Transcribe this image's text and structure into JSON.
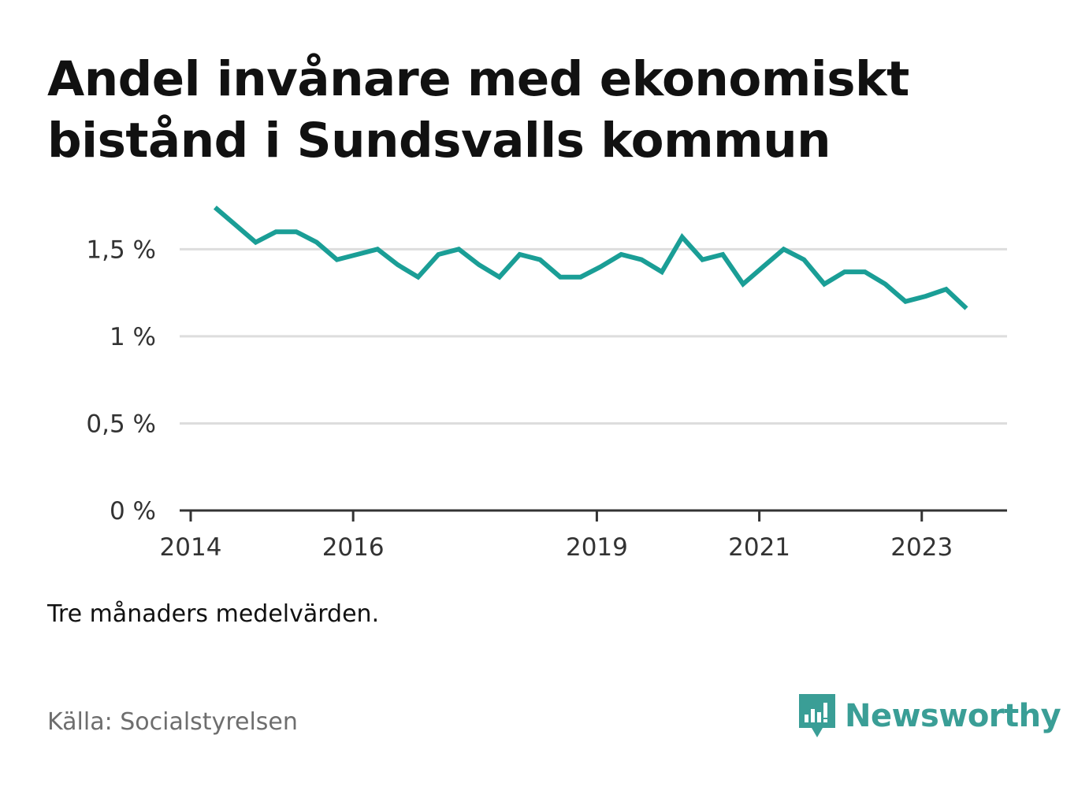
{
  "title": "Andel invånare med ekonomiskt bistånd i Sundsvalls kommun",
  "note": "Tre månaders medelvärden.",
  "source": "Källa: Socialstyrelsen",
  "brand": {
    "name": "Newsworthy",
    "icon": "newsworthy-logo-icon",
    "color": "#3a9e96"
  },
  "chart_data": {
    "type": "line",
    "title": "Andel invånare med ekonomiskt bistånd i Sundsvalls kommun",
    "xlabel": "",
    "ylabel": "",
    "xlim": [
      2014,
      2024.05
    ],
    "ylim": [
      0,
      1.8
    ],
    "grid": true,
    "line_color": "#1a9e96",
    "yticks": [
      {
        "value": 0,
        "label": "0 %"
      },
      {
        "value": 0.5,
        "label": "0,5 %"
      },
      {
        "value": 1,
        "label": "1 %"
      },
      {
        "value": 1.5,
        "label": "1,5 %"
      }
    ],
    "xticks": [
      {
        "value": 2014,
        "label": "2014"
      },
      {
        "value": 2016,
        "label": "2016"
      },
      {
        "value": 2019,
        "label": "2019"
      },
      {
        "value": 2021,
        "label": "2021"
      },
      {
        "value": 2023,
        "label": "2023"
      }
    ],
    "series": [
      {
        "x": [
          2014.3,
          2014.55,
          2014.8,
          2015.05,
          2015.3,
          2015.55,
          2015.8,
          2016.05,
          2016.3,
          2016.55,
          2016.8,
          2017.05,
          2017.3,
          2017.55,
          2017.8,
          2018.05,
          2018.3,
          2018.55,
          2018.8,
          2019.05,
          2019.3,
          2019.55,
          2019.8,
          2020.05,
          2020.3,
          2020.55,
          2020.8,
          2021.05,
          2021.3,
          2021.55,
          2021.8,
          2022.05,
          2022.3,
          2022.55,
          2022.8,
          2023.05,
          2023.3,
          2023.55
        ],
        "values": [
          1.74,
          1.64,
          1.54,
          1.6,
          1.6,
          1.54,
          1.44,
          1.47,
          1.5,
          1.41,
          1.34,
          1.47,
          1.5,
          1.41,
          1.34,
          1.47,
          1.44,
          1.34,
          1.34,
          1.4,
          1.47,
          1.44,
          1.37,
          1.57,
          1.44,
          1.47,
          1.3,
          1.4,
          1.5,
          1.44,
          1.3,
          1.37,
          1.37,
          1.3,
          1.2,
          1.23,
          1.27,
          1.16
        ]
      }
    ]
  }
}
